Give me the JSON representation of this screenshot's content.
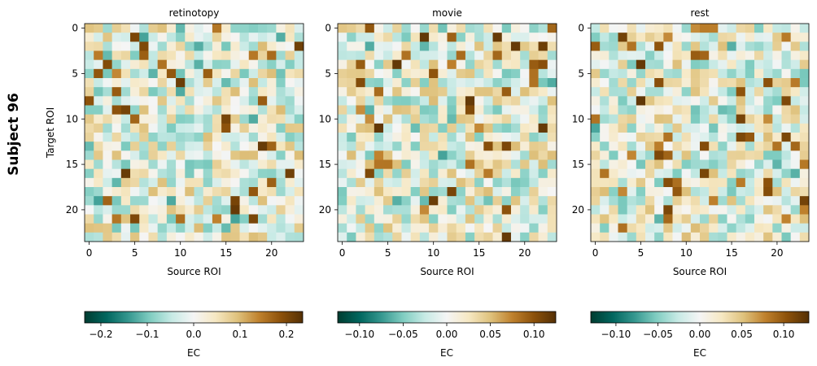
{
  "figure": {
    "row_label": "Subject 96"
  },
  "chart_data": [
    {
      "type": "heatmap",
      "title": "retinotopy",
      "xlabel": "Source ROI",
      "ylabel": "Target ROI",
      "n_rois": 24,
      "x_ticks": [
        0,
        5,
        10,
        15,
        20
      ],
      "y_ticks": [
        0,
        5,
        10,
        15,
        20
      ],
      "colormap": "BrBG_r",
      "vlim": [
        -0.235,
        0.235
      ],
      "colorbar": {
        "label": "EC",
        "ticks": [
          "−0.2",
          "−0.1",
          "0.0",
          "0.1",
          "0.2"
        ],
        "tick_values": [
          -0.2,
          -0.1,
          0.0,
          0.1,
          0.2
        ]
      },
      "seed": 9613
    },
    {
      "type": "heatmap",
      "title": "movie",
      "xlabel": "Source ROI",
      "ylabel": "",
      "n_rois": 24,
      "x_ticks": [
        0,
        5,
        10,
        15,
        20
      ],
      "y_ticks": [
        0,
        5,
        10,
        15,
        20
      ],
      "colormap": "BrBG_r",
      "vlim": [
        -0.125,
        0.125
      ],
      "colorbar": {
        "label": "EC",
        "ticks": [
          "−0.10",
          "−0.05",
          "0.00",
          "0.05",
          "0.10"
        ],
        "tick_values": [
          -0.1,
          -0.05,
          0.0,
          0.05,
          0.1
        ]
      },
      "seed": 4421
    },
    {
      "type": "heatmap",
      "title": "rest",
      "xlabel": "Source ROI",
      "ylabel": "",
      "n_rois": 24,
      "x_ticks": [
        0,
        5,
        10,
        15,
        20
      ],
      "y_ticks": [
        0,
        5,
        10,
        15,
        20
      ],
      "colormap": "BrBG_r",
      "vlim": [
        -0.13,
        0.13
      ],
      "colorbar": {
        "label": "EC",
        "ticks": [
          "−0.10",
          "−0.05",
          "0.00",
          "0.05",
          "0.10"
        ],
        "tick_values": [
          -0.1,
          -0.05,
          0.0,
          0.05,
          0.1
        ]
      },
      "seed": 7777
    }
  ]
}
